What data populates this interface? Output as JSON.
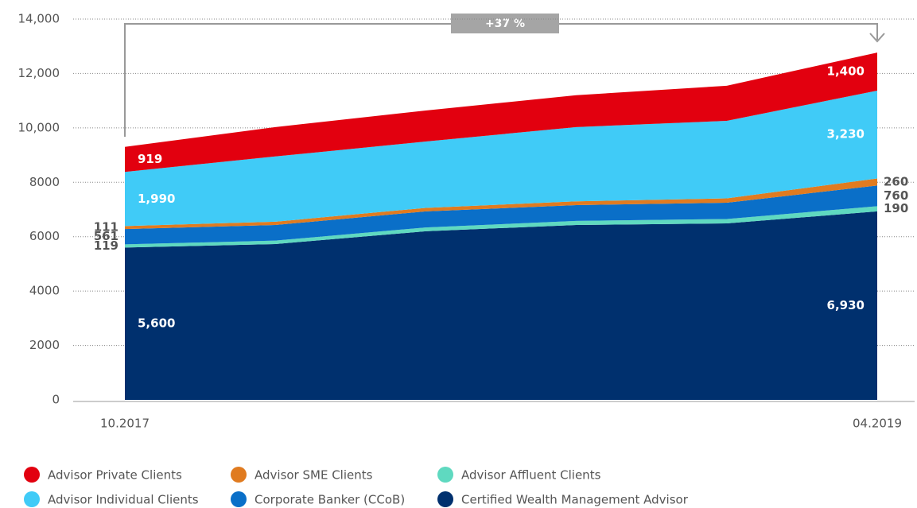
{
  "chart_data": {
    "type": "stacked_area",
    "categories": [
      "10.2017",
      null,
      null,
      null,
      null,
      "04.2019"
    ],
    "ylim": [
      0,
      14000
    ],
    "yticks": [
      0,
      2000,
      4000,
      6000,
      8000,
      {
        "value": 10000,
        "label": "10,000"
      },
      {
        "value": 12000,
        "label": "12,000"
      },
      {
        "value": 14000,
        "label": "14,000"
      }
    ],
    "grid": true,
    "annotation": "+37 %",
    "series": [
      {
        "name": "Certified Wealth Management Advisor",
        "color": "#00306e",
        "values": [
          5600,
          5730,
          6200,
          6430,
          6490,
          6930
        ],
        "value_labels": [
          "5,600",
          null,
          null,
          null,
          null,
          "6,930"
        ]
      },
      {
        "name": "Advisor Affluent Clients",
        "color": "#5fd9c0",
        "values": [
          119,
          125,
          140,
          150,
          160,
          190
        ]
      },
      {
        "name": "Corporate Banker (CCoB)",
        "color": "#0a6fc8",
        "values": [
          561,
          575,
          590,
          580,
          600,
          760
        ]
      },
      {
        "name": "Advisor SME Clients",
        "color": "#e07b20",
        "values": [
          111,
          120,
          130,
          140,
          160,
          260
        ]
      },
      {
        "name": "Advisor Individual Clients",
        "color": "#40cbf7",
        "values": [
          1990,
          2400,
          2440,
          2730,
          2850,
          3230
        ],
        "value_labels": [
          "1,990",
          null,
          null,
          null,
          null,
          "3,230"
        ]
      },
      {
        "name": "Advisor Private Clients",
        "color": "#e2000f",
        "values": [
          919,
          1080,
          1140,
          1170,
          1290,
          1400
        ],
        "value_labels": [
          "919",
          null,
          null,
          null,
          null,
          "1,400"
        ]
      }
    ]
  }
}
